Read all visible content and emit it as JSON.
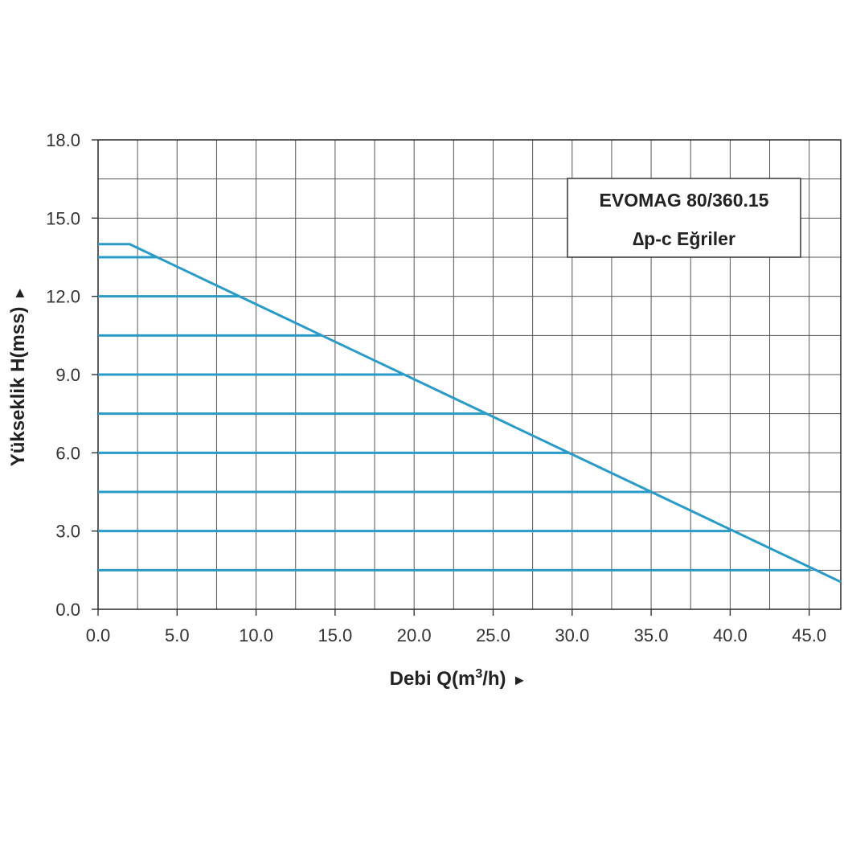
{
  "chart_data": {
    "type": "line",
    "title": "",
    "legend_box": {
      "line1": "EVOMAG 80/360.15",
      "line2": "∆p-c Eğriler",
      "placement": "top-right"
    },
    "xlabel": "Debi Q(m",
    "xlabel_sup": "3",
    "xlabel_tail": "/h)",
    "ylabel": "Yükseklik H(mss)",
    "axis_arrow": "►",
    "xlim": [
      0,
      47
    ],
    "ylim": [
      0,
      18
    ],
    "x_ticks": [
      "0.0",
      "5.0",
      "10.0",
      "15.0",
      "20.0",
      "25.0",
      "30.0",
      "35.0",
      "40.0",
      "45.0"
    ],
    "y_ticks": [
      "0.0",
      "3.0",
      "6.0",
      "9.0",
      "12.0",
      "15.0",
      "18.0"
    ],
    "grid": true,
    "line_color": "#2a9bc8",
    "envelope": {
      "x": [
        0,
        2,
        47
      ],
      "y": [
        14.0,
        14.0,
        1.05
      ]
    },
    "series": [
      {
        "x": [
          0,
          45.1
        ],
        "y": [
          1.5,
          1.5
        ]
      },
      {
        "x": [
          0,
          40.0
        ],
        "y": [
          3.0,
          3.0
        ]
      },
      {
        "x": [
          0,
          35.0
        ],
        "y": [
          4.5,
          4.5
        ]
      },
      {
        "x": [
          0,
          29.8
        ],
        "y": [
          6.0,
          6.0
        ]
      },
      {
        "x": [
          0,
          24.6
        ],
        "y": [
          7.5,
          7.5
        ]
      },
      {
        "x": [
          0,
          19.3
        ],
        "y": [
          9.0,
          9.0
        ]
      },
      {
        "x": [
          0,
          14.1
        ],
        "y": [
          10.5,
          10.5
        ]
      },
      {
        "x": [
          0,
          8.9
        ],
        "y": [
          12.0,
          12.0
        ]
      },
      {
        "x": [
          0,
          3.7
        ],
        "y": [
          13.5,
          13.5
        ]
      }
    ]
  }
}
